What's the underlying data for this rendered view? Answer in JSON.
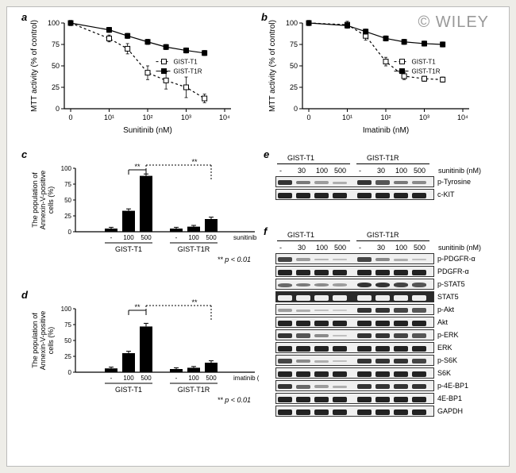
{
  "watermark": "© WILEY",
  "panels": {
    "a": {
      "label": "a",
      "ylabel": "MTT activity (% of control)",
      "xlabel": "Sunitinib (nM)",
      "ylim": [
        0,
        100
      ],
      "ytick_step": 25,
      "xticks": [
        "0",
        "10¹",
        "10²",
        "10³",
        "10⁴"
      ],
      "series": [
        {
          "name": "GIST-T1",
          "marker": "square-open",
          "dash": true,
          "x": [
            0,
            10,
            30,
            100,
            300,
            1000,
            3000
          ],
          "y": [
            100,
            82,
            70,
            42,
            33,
            25,
            12
          ],
          "err": [
            3,
            4,
            6,
            8,
            10,
            12,
            5
          ]
        },
        {
          "name": "GIST-T1R",
          "marker": "square-filled",
          "dash": false,
          "x": [
            0,
            10,
            30,
            100,
            300,
            1000,
            3000
          ],
          "y": [
            100,
            92,
            85,
            78,
            72,
            68,
            65
          ],
          "err": [
            3,
            3,
            3,
            3,
            3,
            3,
            3
          ]
        }
      ],
      "label_fontsize": 10,
      "line_color": "#000000",
      "background_color": "#ffffff"
    },
    "b": {
      "label": "b",
      "ylabel": "MTT activity (% of control)",
      "xlabel": "Imatinib (nM)",
      "ylim": [
        0,
        100
      ],
      "ytick_step": 25,
      "xticks": [
        "0",
        "10¹",
        "10²",
        "10³",
        "10⁴"
      ],
      "series": [
        {
          "name": "GIST-T1",
          "marker": "square-open",
          "dash": true,
          "x": [
            0,
            10,
            30,
            100,
            300,
            1000,
            3000
          ],
          "y": [
            100,
            98,
            85,
            55,
            38,
            35,
            34
          ],
          "err": [
            3,
            4,
            5,
            5,
            4,
            3,
            3
          ]
        },
        {
          "name": "GIST-T1R",
          "marker": "square-filled",
          "dash": false,
          "x": [
            0,
            10,
            30,
            100,
            300,
            1000,
            3000
          ],
          "y": [
            100,
            97,
            90,
            82,
            78,
            76,
            75
          ],
          "err": [
            3,
            3,
            3,
            3,
            3,
            3,
            3
          ]
        }
      ],
      "label_fontsize": 10,
      "line_color": "#000000",
      "background_color": "#ffffff"
    },
    "c": {
      "label": "c",
      "ylabel": "The population of\nAnnexin-V-positive\ncells (%)",
      "ylim": [
        0,
        100
      ],
      "ytick_step": 25,
      "groups": [
        "GIST-T1",
        "GIST-T1R"
      ],
      "conc_labels": [
        "-",
        "100",
        "500",
        "-",
        "100",
        "500"
      ],
      "xlabel_suffix": "sunitinib (nM)",
      "values": [
        5,
        33,
        88,
        5,
        8,
        20
      ],
      "err": [
        2,
        3,
        3,
        2,
        2,
        3
      ],
      "bar_color": "#000000",
      "sig_marks": [
        "**",
        "**"
      ],
      "p_note": "** p < 0.01",
      "label_fontsize": 9
    },
    "d": {
      "label": "d",
      "ylabel": "The population of\nAnnexin-V-positive\ncells (%)",
      "ylim": [
        0,
        100
      ],
      "ytick_step": 25,
      "groups": [
        "GIST-T1",
        "GIST-T1R"
      ],
      "conc_labels": [
        "-",
        "100",
        "500",
        "-",
        "100",
        "500"
      ],
      "xlabel_suffix": "imatinib (nM)",
      "values": [
        6,
        30,
        72,
        5,
        7,
        15
      ],
      "err": [
        2,
        3,
        5,
        2,
        2,
        3
      ],
      "bar_color": "#000000",
      "sig_marks": [
        "**",
        "**"
      ],
      "p_note": "** p < 0.01",
      "label_fontsize": 9
    },
    "e": {
      "label": "e",
      "groups": [
        "GIST-T1",
        "GIST-T1R"
      ],
      "lanes": [
        "-",
        "30",
        "100",
        "500",
        "-",
        "30",
        "100",
        "500"
      ],
      "lane_suffix": "sunitinib (nM)",
      "rows": [
        {
          "name": "p-Tyrosine",
          "intensity": [
            0.9,
            0.5,
            0.3,
            0.2,
            0.9,
            0.7,
            0.5,
            0.4
          ]
        },
        {
          "name": "c-KIT",
          "intensity": [
            1,
            1,
            1,
            1,
            1,
            1,
            1,
            1
          ]
        }
      ]
    },
    "f": {
      "label": "f",
      "groups": [
        "GIST-T1",
        "GIST-T1R"
      ],
      "lanes": [
        "-",
        "30",
        "100",
        "500",
        "-",
        "30",
        "100",
        "500"
      ],
      "lane_suffix": "sunitinib (nM)",
      "rows": [
        {
          "name": "p-PDGFR-α",
          "intensity": [
            0.8,
            0.3,
            0.15,
            0.1,
            0.8,
            0.4,
            0.2,
            0.1
          ]
        },
        {
          "name": "PDGFR-α",
          "intensity": [
            1,
            1,
            1,
            1,
            1,
            1,
            1,
            1
          ]
        },
        {
          "name": "p-STAT5",
          "intensity": [
            0.6,
            0.5,
            0.4,
            0.3,
            0.9,
            0.9,
            0.8,
            0.7
          ],
          "blotchy": true
        },
        {
          "name": "STAT5",
          "intensity": [
            1,
            1,
            1,
            1,
            1,
            1,
            1,
            1
          ],
          "dark": true
        },
        {
          "name": "p-Akt",
          "intensity": [
            0.3,
            0.2,
            0.1,
            0.05,
            0.9,
            0.9,
            0.8,
            0.7
          ]
        },
        {
          "name": "Akt",
          "intensity": [
            1,
            1,
            1,
            1,
            1,
            1,
            1,
            1
          ]
        },
        {
          "name": "p-ERK",
          "intensity": [
            0.9,
            0.7,
            0.4,
            0.1,
            0.9,
            0.9,
            0.8,
            0.7
          ]
        },
        {
          "name": "ERK",
          "intensity": [
            1,
            1,
            1,
            1,
            1,
            1,
            1,
            1
          ]
        },
        {
          "name": "p-S6K",
          "intensity": [
            0.8,
            0.4,
            0.2,
            0.1,
            0.9,
            0.9,
            0.9,
            0.8
          ]
        },
        {
          "name": "S6K",
          "intensity": [
            1,
            1,
            1,
            1,
            1,
            1,
            1,
            1
          ]
        },
        {
          "name": "p-4E-BP1",
          "intensity": [
            0.9,
            0.6,
            0.3,
            0.2,
            0.9,
            0.9,
            0.9,
            0.9
          ]
        },
        {
          "name": "4E-BP1",
          "intensity": [
            1,
            1,
            1,
            1,
            1,
            1,
            1,
            1
          ]
        },
        {
          "name": "GAPDH",
          "intensity": [
            1,
            1,
            1,
            1,
            1,
            1,
            1,
            1
          ]
        }
      ]
    }
  }
}
